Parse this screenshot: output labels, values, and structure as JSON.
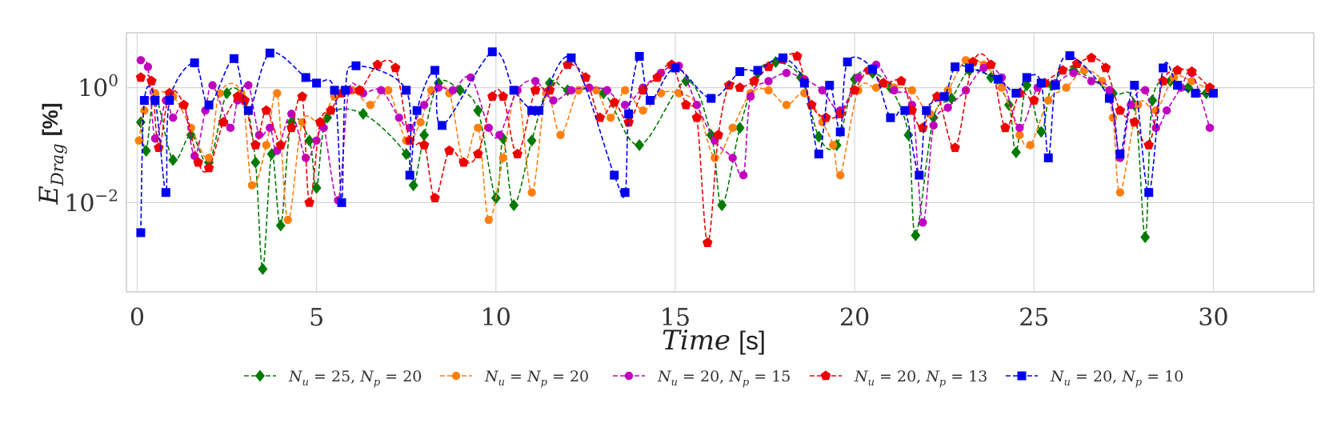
{
  "chart_data": {
    "type": "line",
    "title": "",
    "xlabel_main": "Time",
    "xlabel_unit": "[s]",
    "ylabel_main": "E",
    "ylabel_sub": "Drag",
    "ylabel_unit": "[%]",
    "yscale": "log",
    "xlim": [
      -0.3,
      32.8
    ],
    "ylim": [
      0.00028,
      9
    ],
    "grid": true,
    "legend_position": "below",
    "x_ticks": [
      {
        "value": 0,
        "label": "0"
      },
      {
        "value": 5,
        "label": "5"
      },
      {
        "value": 10,
        "label": "10"
      },
      {
        "value": 15,
        "label": "15"
      },
      {
        "value": 20,
        "label": "20"
      },
      {
        "value": 25,
        "label": "25"
      },
      {
        "value": 30,
        "label": "30"
      }
    ],
    "y_ticks": [
      {
        "value": 1,
        "base": "10",
        "exp": "0"
      },
      {
        "value": 0.01,
        "base": "10",
        "exp": "−2"
      }
    ],
    "series": [
      {
        "name_parts": [
          "N",
          "u",
          " = 25, ",
          "N",
          "p",
          " = 20"
        ],
        "color": "#007a00",
        "marker": "diamond",
        "x": [
          0.1,
          0.25,
          0.5,
          1.0,
          1.5,
          2.0,
          2.5,
          3.0,
          3.3,
          3.5,
          3.75,
          4.0,
          4.3,
          4.8,
          5.0,
          5.3,
          6.3,
          7.5,
          7.7,
          8.0,
          8.4,
          9.0,
          9.5,
          10.0,
          10.2,
          10.5,
          11.0,
          11.5,
          12.0,
          13.0,
          14.0,
          15.3,
          16.0,
          16.3,
          16.8,
          17.3,
          17.8,
          18.5,
          19.0,
          19.5,
          20.0,
          20.5,
          21.0,
          21.5,
          21.7,
          22.2,
          22.7,
          23.2,
          23.8,
          24.3,
          24.5,
          24.8,
          25.2,
          25.5,
          26.1,
          27.2,
          27.8,
          28.1,
          28.3,
          28.8,
          29.3,
          29.8
        ],
        "y": [
          0.25,
          0.08,
          0.7,
          0.055,
          0.15,
          0.05,
          0.8,
          0.6,
          0.05,
          0.0007,
          0.07,
          0.004,
          0.25,
          0.12,
          0.018,
          0.3,
          0.35,
          0.07,
          0.02,
          0.15,
          1.2,
          0.9,
          0.4,
          0.012,
          0.13,
          0.009,
          0.12,
          1.2,
          0.9,
          0.8,
          0.1,
          1.3,
          0.15,
          0.009,
          0.2,
          1.8,
          2.8,
          1.5,
          0.14,
          0.1,
          1.4,
          1.8,
          1.0,
          0.15,
          0.0027,
          0.3,
          0.65,
          2.0,
          1.5,
          0.5,
          0.075,
          1.1,
          0.17,
          1.1,
          2.0,
          0.8,
          0.5,
          0.0025,
          0.6,
          1.3,
          1.0,
          0.8
        ]
      },
      {
        "name_parts": [
          "N",
          "u",
          " = ",
          "N",
          "p",
          " = 20"
        ],
        "color": "#ff7f0e",
        "marker": "circle",
        "x": [
          0.05,
          0.2,
          0.5,
          1.0,
          1.5,
          2.0,
          2.3,
          2.9,
          3.2,
          3.6,
          3.9,
          4.2,
          4.6,
          5.1,
          5.5,
          6.0,
          6.5,
          7.0,
          7.5,
          7.9,
          8.2,
          8.7,
          9.1,
          9.5,
          9.8,
          10.2,
          10.6,
          11.0,
          11.4,
          11.8,
          12.3,
          12.8,
          13.2,
          13.6,
          14.1,
          14.6,
          15.1,
          15.6,
          16.1,
          16.6,
          17.1,
          17.6,
          18.1,
          18.6,
          19.1,
          19.4,
          19.6,
          20.1,
          20.6,
          21.1,
          21.6,
          22.1,
          22.6,
          23.1,
          23.6,
          24.1,
          24.6,
          24.9,
          25.4,
          25.9,
          26.4,
          26.9,
          27.2,
          27.4,
          27.9,
          28.4,
          28.9,
          29.4,
          29.9
        ],
        "y": [
          0.12,
          0.4,
          0.8,
          0.7,
          0.2,
          0.06,
          0.8,
          0.8,
          0.02,
          0.1,
          0.8,
          0.005,
          0.25,
          0.25,
          0.7,
          0.9,
          0.5,
          0.9,
          0.12,
          0.25,
          0.9,
          0.8,
          0.05,
          0.2,
          0.005,
          0.06,
          0.9,
          0.015,
          0.8,
          0.15,
          0.9,
          0.9,
          0.3,
          0.9,
          0.4,
          0.8,
          0.8,
          0.5,
          0.06,
          0.2,
          0.8,
          0.9,
          0.5,
          0.8,
          0.25,
          0.1,
          0.03,
          0.9,
          1.0,
          1.0,
          0.9,
          0.35,
          0.9,
          3.0,
          2.5,
          1.0,
          0.15,
          0.1,
          0.6,
          1.0,
          2.0,
          1.3,
          0.3,
          0.015,
          0.5,
          0.4,
          1.5,
          1.3,
          0.9
        ]
      },
      {
        "name_parts": [
          "N",
          "u",
          " = 20, ",
          "N",
          "p",
          " = 15"
        ],
        "color": "#c000c0",
        "marker": "circle",
        "x": [
          0.1,
          0.3,
          0.5,
          0.8,
          1.0,
          1.3,
          1.6,
          1.9,
          2.1,
          2.6,
          2.8,
          3.1,
          3.4,
          3.7,
          3.9,
          4.3,
          4.7,
          5.0,
          5.2,
          5.6,
          5.9,
          6.3,
          6.8,
          7.3,
          7.6,
          8.0,
          8.4,
          8.8,
          9.3,
          9.8,
          10.1,
          10.6,
          11.1,
          11.6,
          12.1,
          12.6,
          13.1,
          13.6,
          14.1,
          14.6,
          15.1,
          15.6,
          16.1,
          16.6,
          16.9,
          17.1,
          17.6,
          18.1,
          18.6,
          19.1,
          19.6,
          20.1,
          20.6,
          21.1,
          21.6,
          21.9,
          22.2,
          22.6,
          23.1,
          23.6,
          24.1,
          24.6,
          25.1,
          25.6,
          26.1,
          26.6,
          27.1,
          27.4,
          27.7,
          28.1,
          28.4,
          28.7,
          29.1,
          29.4,
          29.9
        ],
        "y": [
          3.0,
          2.3,
          0.13,
          0.6,
          0.3,
          0.5,
          0.065,
          0.4,
          1.1,
          0.2,
          0.6,
          1.1,
          0.15,
          0.2,
          0.08,
          0.35,
          0.06,
          0.12,
          0.2,
          0.011,
          0.9,
          0.8,
          0.9,
          0.3,
          0.2,
          0.5,
          1.0,
          0.9,
          1.5,
          0.2,
          0.15,
          0.9,
          1.3,
          0.6,
          0.9,
          1.0,
          0.9,
          0.5,
          1.0,
          1.8,
          2.4,
          0.5,
          0.12,
          0.06,
          0.03,
          0.7,
          1.3,
          1.8,
          1.4,
          0.9,
          0.4,
          1.5,
          2.5,
          0.9,
          0.5,
          0.0045,
          0.22,
          0.45,
          0.9,
          2.2,
          1.5,
          0.2,
          1.0,
          1.2,
          1.8,
          1.3,
          0.9,
          0.06,
          0.5,
          0.9,
          0.2,
          0.4,
          1.0,
          1.8,
          0.2
        ]
      },
      {
        "name_parts": [
          "N",
          "u",
          " = 20, ",
          "N",
          "p",
          " = 13"
        ],
        "color": "#ee0000",
        "marker": "pentagon",
        "x": [
          0.1,
          0.4,
          0.6,
          0.9,
          1.3,
          1.7,
          2.0,
          2.4,
          2.8,
          3.0,
          3.3,
          3.6,
          4.0,
          4.3,
          4.6,
          4.8,
          5.1,
          5.4,
          5.7,
          6.2,
          6.7,
          7.2,
          7.6,
          8.0,
          8.3,
          8.7,
          9.1,
          9.5,
          9.9,
          10.2,
          10.6,
          11.1,
          11.5,
          12.0,
          12.5,
          12.9,
          13.3,
          13.7,
          14.1,
          14.5,
          14.9,
          15.3,
          15.6,
          15.9,
          16.2,
          16.5,
          16.8,
          17.2,
          17.6,
          18.0,
          18.4,
          18.8,
          19.2,
          19.6,
          20.0,
          20.4,
          20.8,
          21.3,
          21.6,
          21.9,
          22.3,
          22.8,
          23.3,
          23.8,
          24.2,
          24.6,
          25.0,
          25.3,
          25.8,
          26.2,
          26.6,
          27.0,
          27.4,
          27.8,
          28.2,
          28.6,
          29.0,
          29.4,
          29.9
        ],
        "y": [
          1.5,
          1.3,
          0.09,
          0.8,
          0.5,
          0.05,
          0.04,
          0.25,
          0.7,
          0.6,
          0.1,
          0.4,
          0.1,
          0.2,
          0.7,
          0.01,
          0.25,
          0.4,
          0.8,
          0.9,
          2.5,
          2.2,
          0.12,
          0.1,
          0.012,
          0.08,
          0.05,
          0.07,
          0.7,
          0.7,
          0.07,
          0.9,
          0.9,
          2.5,
          1.5,
          0.3,
          0.55,
          0.25,
          0.9,
          1.5,
          2.5,
          0.5,
          0.3,
          0.002,
          0.15,
          1.1,
          1.0,
          1.3,
          2.3,
          3.1,
          3.5,
          0.5,
          0.3,
          0.35,
          0.9,
          2.0,
          1.2,
          1.3,
          0.4,
          0.2,
          0.7,
          0.09,
          2.8,
          2.5,
          0.2,
          0.8,
          0.6,
          1.2,
          2.0,
          2.6,
          3.3,
          2.2,
          0.4,
          0.25,
          0.1,
          1.3,
          2.0,
          1.9,
          1.0
        ]
      },
      {
        "name_parts": [
          "N",
          "u",
          " = 20, ",
          "N",
          "p",
          " = 10"
        ],
        "color": "#0000ee",
        "marker": "square",
        "x": [
          0.1,
          0.2,
          0.5,
          0.8,
          0.9,
          1.6,
          2.0,
          2.7,
          3.1,
          3.7,
          4.7,
          5.0,
          5.5,
          5.7,
          5.8,
          6.1,
          7.5,
          7.6,
          7.8,
          8.3,
          8.5,
          9.9,
          10.5,
          11.0,
          11.2,
          12.1,
          13.3,
          13.6,
          13.7,
          14.0,
          14.3,
          15.0,
          16.0,
          16.8,
          17.3,
          18.0,
          18.6,
          19.0,
          19.3,
          19.6,
          19.8,
          20.5,
          21.0,
          21.4,
          21.8,
          22.0,
          22.5,
          22.8,
          23.2,
          24.0,
          24.5,
          24.8,
          25.2,
          25.4,
          25.6,
          26.0,
          27.1,
          27.4,
          27.8,
          28.2,
          28.6,
          29.0,
          29.5,
          30.0
        ],
        "y": [
          0.003,
          0.6,
          0.6,
          0.015,
          0.6,
          2.7,
          0.5,
          3.2,
          0.4,
          4.0,
          1.5,
          1.2,
          0.9,
          0.01,
          0.9,
          2.4,
          0.9,
          0.03,
          0.4,
          2.0,
          0.22,
          4.2,
          0.9,
          0.4,
          0.4,
          3.3,
          0.03,
          0.015,
          0.35,
          3.5,
          0.6,
          2.2,
          0.65,
          1.9,
          2.0,
          3.3,
          1.2,
          0.07,
          1.1,
          0.17,
          2.8,
          2.1,
          0.3,
          0.4,
          0.03,
          0.4,
          0.7,
          2.3,
          2.2,
          1.4,
          0.8,
          1.5,
          1.2,
          0.06,
          1.1,
          3.6,
          0.65,
          0.07,
          1.1,
          0.015,
          2.2,
          1.1,
          0.8,
          0.8
        ]
      }
    ]
  }
}
